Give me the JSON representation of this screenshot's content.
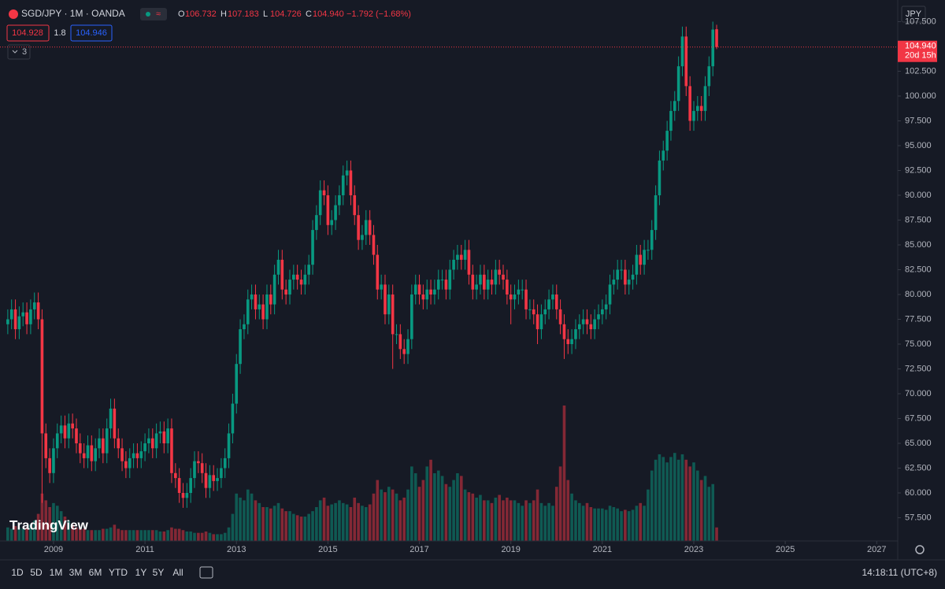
{
  "header": {
    "symbol": "SGD/JPY · 1M · OANDA",
    "ohlc": [
      {
        "letter": "O",
        "value": "106.732"
      },
      {
        "letter": "H",
        "value": "107.183"
      },
      {
        "letter": "L",
        "value": "104.726"
      },
      {
        "letter": "C",
        "value": "104.940"
      }
    ],
    "change": "−1.792 (−1.68%)",
    "sell": "104.928",
    "spread": "1.8",
    "buy": "104.946",
    "indicators": "3"
  },
  "chart_data": {
    "type": "candlestick",
    "currency": "JPY",
    "up_color": "#089981",
    "down_color": "#f23645",
    "x": [
      2008,
      2008.083,
      2008.167,
      2008.25,
      2008.333,
      2008.417,
      2008.5,
      2008.583,
      2008.667,
      2008.75,
      2008.833,
      2008.917,
      2009,
      2009.083,
      2009.167,
      2009.25,
      2009.333,
      2009.417,
      2009.5,
      2009.583,
      2009.667,
      2009.75,
      2009.833,
      2009.917,
      2010,
      2010.083,
      2010.167,
      2010.25,
      2010.333,
      2010.417,
      2010.5,
      2010.583,
      2010.667,
      2010.75,
      2010.833,
      2010.917,
      2011,
      2011.083,
      2011.167,
      2011.25,
      2011.333,
      2011.417,
      2011.5,
      2011.583,
      2011.667,
      2011.75,
      2011.833,
      2011.917,
      2012,
      2012.083,
      2012.167,
      2012.25,
      2012.333,
      2012.417,
      2012.5,
      2012.583,
      2012.667,
      2012.75,
      2012.833,
      2012.917,
      2013,
      2013.083,
      2013.167,
      2013.25,
      2013.333,
      2013.417,
      2013.5,
      2013.583,
      2013.667,
      2013.75,
      2013.833,
      2013.917,
      2014,
      2014.083,
      2014.167,
      2014.25,
      2014.333,
      2014.417,
      2014.5,
      2014.583,
      2014.667,
      2014.75,
      2014.833,
      2014.917,
      2015,
      2015.083,
      2015.167,
      2015.25,
      2015.333,
      2015.417,
      2015.5,
      2015.583,
      2015.667,
      2015.75,
      2015.833,
      2015.917,
      2016,
      2016.083,
      2016.167,
      2016.25,
      2016.333,
      2016.417,
      2016.5,
      2016.583,
      2016.667,
      2016.75,
      2016.833,
      2016.917,
      2017,
      2017.083,
      2017.167,
      2017.25,
      2017.333,
      2017.417,
      2017.5,
      2017.583,
      2017.667,
      2017.75,
      2017.833,
      2017.917,
      2018,
      2018.083,
      2018.167,
      2018.25,
      2018.333,
      2018.417,
      2018.5,
      2018.583,
      2018.667,
      2018.75,
      2018.833,
      2018.917,
      2019,
      2019.083,
      2019.167,
      2019.25,
      2019.333,
      2019.417,
      2019.5,
      2019.583,
      2019.667,
      2019.75,
      2019.833,
      2019.917,
      2020,
      2020.083,
      2020.167,
      2020.25,
      2020.333,
      2020.417,
      2020.5,
      2020.583,
      2020.667,
      2020.75,
      2020.833,
      2020.917,
      2021,
      2021.083,
      2021.167,
      2021.25,
      2021.333,
      2021.417,
      2021.5,
      2021.583,
      2021.667,
      2021.75,
      2021.833,
      2021.917,
      2022,
      2022.083,
      2022.167,
      2022.25,
      2022.333,
      2022.417,
      2022.5,
      2022.583,
      2022.667,
      2022.75,
      2022.833,
      2022.917,
      2023,
      2023.083,
      2023.167,
      2023.25,
      2023.333,
      2023.417,
      2023.5
    ],
    "open": [
      77.0,
      77.5,
      78.5,
      76.5,
      77.8,
      78.2,
      77.0,
      78.5,
      79.2,
      77.5,
      66.0,
      63.5,
      62.0,
      64.5,
      66.0,
      66.8,
      65.5,
      67.0,
      66.5,
      65.0,
      64.0,
      63.5,
      64.8,
      63.2,
      64.5,
      65.5,
      64.0,
      66.5,
      68.5,
      65.5,
      64.5,
      63.2,
      62.5,
      63.5,
      64.0,
      63.5,
      64.2,
      65.0,
      65.5,
      64.5,
      66.0,
      66.2,
      65.0,
      66.5,
      62.0,
      61.5,
      60.0,
      59.5,
      60.0,
      61.5,
      63.2,
      63.0,
      62.0,
      60.5,
      61.8,
      61.2,
      61.5,
      62.5,
      63.5,
      66.0,
      69.0,
      73.0,
      76.5,
      77.0,
      79.5,
      80.0,
      78.5,
      79.0,
      77.5,
      80.0,
      79.0,
      82.0,
      83.5,
      80.5,
      80.0,
      81.5,
      82.0,
      81.5,
      81.0,
      82.0,
      83.0,
      86.5,
      88.0,
      90.5,
      90.0,
      87.0,
      87.5,
      89.0,
      90.0,
      92.0,
      92.5,
      90.0,
      88.0,
      85.5,
      86.0,
      87.5,
      86.0,
      84.0,
      80.5,
      81.0,
      78.0,
      80.0,
      76.0,
      76.0,
      74.5,
      74.0,
      75.5,
      80.0,
      81.0,
      80.0,
      79.5,
      80.5,
      80.0,
      80.5,
      81.5,
      81.5,
      80.5,
      82.5,
      83.5,
      84.0,
      83.5,
      84.5,
      82.0,
      80.5,
      81.0,
      82.0,
      80.5,
      81.5,
      81.0,
      82.5,
      82.0,
      81.5,
      80.0,
      79.5,
      80.0,
      80.5,
      80.5,
      78.5,
      78.5,
      78.0,
      76.5,
      78.0,
      78.5,
      79.5,
      80.0,
      78.5,
      77.0,
      75.5,
      75.0,
      75.5,
      76.5,
      77.0,
      77.5,
      77.0,
      76.5,
      77.5,
      78.0,
      78.5,
      79.0,
      81.0,
      81.5,
      82.5,
      82.5,
      81.0,
      81.5,
      82.0,
      84.0,
      83.0,
      84.5,
      84.5,
      86.5,
      90.0,
      93.5,
      94.5,
      96.5,
      98.5,
      99.5,
      103.0,
      106.0,
      101.0,
      97.5,
      98.5,
      99.0,
      98.5,
      101.0,
      103.0,
      106.732
    ],
    "high": [
      78.5,
      79.5,
      79.5,
      78.8,
      79.2,
      79.2,
      79.5,
      80.2,
      80.2,
      78.5,
      67.0,
      64.5,
      65.5,
      67.0,
      67.8,
      67.8,
      68.0,
      68.0,
      67.5,
      66.0,
      65.0,
      65.8,
      65.8,
      65.5,
      66.5,
      66.5,
      67.5,
      69.5,
      69.5,
      66.5,
      65.5,
      64.2,
      64.5,
      65.0,
      65.0,
      65.2,
      66.0,
      66.5,
      66.5,
      67.0,
      67.2,
      67.2,
      67.5,
      67.5,
      63.0,
      62.5,
      61.0,
      61.0,
      62.5,
      64.2,
      64.2,
      64.0,
      63.0,
      62.8,
      62.8,
      62.5,
      63.5,
      64.5,
      67.0,
      70.0,
      74.0,
      77.5,
      78.0,
      80.5,
      81.0,
      81.0,
      80.0,
      80.0,
      81.0,
      81.0,
      83.0,
      84.5,
      84.5,
      81.5,
      82.5,
      83.0,
      83.0,
      82.5,
      83.0,
      84.0,
      87.5,
      89.0,
      91.5,
      91.5,
      91.0,
      88.5,
      90.0,
      91.0,
      93.0,
      93.5,
      93.5,
      91.0,
      89.0,
      87.0,
      88.5,
      88.5,
      87.0,
      85.0,
      82.0,
      82.0,
      81.0,
      81.0,
      77.0,
      77.0,
      75.5,
      76.5,
      81.0,
      82.0,
      82.0,
      81.0,
      81.5,
      81.5,
      81.5,
      82.5,
      82.5,
      82.5,
      83.5,
      84.5,
      85.0,
      85.0,
      85.5,
      85.5,
      83.0,
      82.0,
      83.0,
      83.0,
      82.5,
      82.5,
      83.5,
      83.5,
      83.0,
      82.5,
      81.0,
      81.0,
      81.5,
      81.5,
      81.5,
      79.5,
      79.5,
      79.0,
      79.0,
      79.5,
      80.5,
      81.0,
      81.0,
      79.5,
      78.0,
      76.5,
      76.5,
      77.5,
      78.0,
      78.5,
      78.5,
      78.0,
      78.5,
      79.0,
      79.5,
      80.0,
      82.0,
      82.5,
      83.5,
      83.5,
      83.5,
      82.5,
      83.0,
      85.0,
      85.0,
      85.5,
      85.5,
      87.5,
      91.0,
      94.5,
      95.5,
      97.5,
      99.5,
      100.5,
      104.0,
      107.0,
      107.0,
      102.0,
      99.5,
      100.0,
      100.0,
      102.0,
      104.0,
      107.5,
      107.183
    ],
    "low": [
      76.0,
      76.5,
      75.5,
      75.5,
      76.8,
      76.0,
      76.0,
      77.5,
      76.5,
      59.0,
      62.5,
      61.0,
      61.0,
      63.5,
      65.0,
      64.5,
      64.5,
      65.5,
      64.0,
      63.0,
      62.5,
      62.5,
      62.2,
      62.2,
      63.5,
      63.0,
      63.0,
      65.5,
      64.5,
      63.5,
      62.2,
      61.5,
      61.5,
      62.5,
      62.5,
      62.5,
      63.2,
      64.0,
      63.5,
      63.5,
      65.0,
      64.0,
      64.0,
      61.0,
      60.5,
      59.0,
      58.5,
      58.5,
      59.0,
      60.5,
      62.0,
      61.0,
      59.5,
      59.5,
      60.2,
      60.2,
      60.5,
      61.5,
      62.5,
      65.0,
      68.0,
      72.0,
      75.5,
      76.0,
      78.5,
      77.5,
      77.5,
      76.5,
      76.5,
      78.0,
      78.0,
      81.0,
      79.5,
      79.0,
      79.0,
      80.5,
      80.5,
      80.0,
      80.0,
      81.0,
      82.0,
      85.5,
      87.0,
      89.0,
      86.0,
      86.0,
      86.5,
      88.0,
      89.0,
      91.0,
      89.0,
      87.0,
      84.5,
      84.5,
      85.0,
      85.0,
      83.0,
      79.5,
      79.5,
      77.0,
      77.0,
      72.5,
      75.0,
      73.5,
      73.0,
      73.0,
      74.5,
      79.0,
      79.0,
      78.5,
      78.5,
      79.0,
      79.0,
      79.5,
      80.5,
      79.5,
      79.5,
      81.5,
      82.5,
      82.5,
      82.5,
      81.0,
      79.5,
      79.5,
      80.0,
      79.5,
      79.5,
      80.0,
      80.0,
      81.0,
      80.5,
      79.0,
      77.0,
      78.5,
      79.0,
      79.5,
      77.5,
      77.5,
      77.0,
      75.0,
      75.5,
      77.0,
      77.5,
      78.5,
      77.5,
      76.0,
      73.5,
      74.0,
      74.0,
      74.5,
      75.5,
      76.0,
      76.0,
      75.5,
      75.5,
      76.5,
      77.0,
      77.5,
      78.0,
      80.0,
      80.5,
      81.5,
      80.0,
      80.0,
      80.5,
      81.0,
      82.0,
      82.0,
      83.5,
      83.5,
      85.5,
      89.0,
      92.5,
      93.5,
      95.5,
      97.5,
      98.5,
      102.0,
      100.0,
      96.5,
      96.5,
      97.5,
      97.5,
      97.5,
      100.0,
      102.0,
      104.726
    ],
    "close": [
      77.5,
      78.5,
      76.5,
      77.8,
      78.2,
      77.0,
      78.5,
      79.2,
      77.5,
      66.0,
      63.5,
      62.0,
      64.5,
      66.0,
      66.8,
      65.5,
      67.0,
      66.5,
      65.0,
      64.0,
      63.5,
      64.8,
      63.2,
      64.5,
      65.5,
      64.0,
      66.5,
      68.5,
      65.5,
      64.5,
      63.2,
      62.5,
      63.5,
      64.0,
      63.5,
      64.2,
      65.0,
      65.5,
      64.5,
      66.0,
      66.2,
      65.0,
      66.5,
      62.0,
      61.5,
      60.0,
      59.5,
      60.0,
      61.5,
      63.2,
      63.0,
      62.0,
      60.5,
      61.8,
      61.2,
      61.5,
      62.5,
      63.5,
      66.0,
      69.0,
      73.0,
      76.5,
      77.0,
      79.5,
      80.0,
      78.5,
      79.0,
      77.5,
      80.0,
      79.0,
      82.0,
      83.5,
      80.5,
      80.0,
      81.5,
      82.0,
      81.5,
      81.0,
      82.0,
      83.0,
      86.5,
      88.0,
      90.5,
      90.0,
      87.0,
      87.5,
      89.0,
      90.0,
      92.0,
      92.5,
      90.0,
      88.0,
      85.5,
      86.0,
      87.5,
      86.0,
      84.0,
      80.5,
      81.0,
      78.0,
      80.0,
      76.0,
      76.0,
      74.5,
      74.0,
      75.5,
      80.0,
      81.0,
      80.0,
      79.5,
      80.5,
      80.0,
      80.5,
      81.5,
      81.5,
      80.5,
      82.5,
      83.5,
      84.0,
      83.5,
      84.5,
      82.0,
      80.5,
      81.0,
      82.0,
      80.5,
      81.5,
      81.0,
      82.5,
      82.0,
      81.5,
      80.0,
      79.5,
      80.0,
      80.5,
      80.5,
      78.5,
      78.5,
      78.0,
      76.5,
      78.0,
      78.5,
      79.5,
      80.0,
      78.5,
      77.0,
      75.5,
      75.0,
      75.5,
      76.5,
      77.0,
      77.5,
      77.0,
      76.5,
      77.5,
      78.0,
      78.5,
      79.0,
      81.0,
      81.5,
      82.5,
      82.5,
      81.0,
      81.5,
      82.0,
      84.0,
      83.0,
      84.5,
      84.5,
      86.5,
      90.0,
      93.5,
      94.5,
      96.5,
      98.5,
      99.5,
      103.0,
      106.0,
      101.0,
      97.5,
      98.5,
      99.0,
      98.5,
      101.0,
      103.0,
      106.7,
      104.94
    ],
    "volume": [
      10,
      9,
      11,
      10,
      9,
      10,
      12,
      15,
      20,
      35,
      30,
      25,
      28,
      26,
      22,
      18,
      15,
      12,
      10,
      9,
      9,
      8,
      8,
      8,
      8,
      9,
      9,
      10,
      12,
      9,
      8,
      8,
      8,
      8,
      8,
      8,
      8,
      8,
      8,
      8,
      7,
      7,
      8,
      10,
      9,
      9,
      8,
      7,
      7,
      6,
      6,
      6,
      7,
      6,
      5,
      5,
      5,
      6,
      10,
      20,
      35,
      32,
      30,
      38,
      35,
      30,
      28,
      25,
      25,
      24,
      26,
      28,
      24,
      22,
      22,
      20,
      19,
      18,
      18,
      20,
      22,
      25,
      30,
      32,
      26,
      27,
      28,
      30,
      28,
      27,
      25,
      32,
      28,
      26,
      25,
      27,
      35,
      45,
      38,
      36,
      40,
      38,
      35,
      30,
      32,
      38,
      55,
      50,
      40,
      45,
      55,
      60,
      50,
      52,
      48,
      42,
      40,
      45,
      50,
      48,
      38,
      36,
      35,
      32,
      34,
      30,
      30,
      28,
      32,
      34,
      30,
      32,
      30,
      30,
      28,
      26,
      30,
      28,
      30,
      38,
      28,
      26,
      28,
      26,
      40,
      55,
      100,
      45,
      35,
      30,
      28,
      26,
      28,
      25,
      24,
      24,
      24,
      23,
      26,
      25,
      24,
      22,
      23,
      22,
      23,
      26,
      28,
      26,
      38,
      52,
      60,
      64,
      62,
      58,
      62,
      65,
      60,
      64,
      60,
      55,
      58,
      52,
      45,
      48,
      40,
      42,
      10
    ],
    "xlim": [
      2007.83,
      2027.46
    ],
    "xticks": [
      2009,
      2011,
      2013,
      2015,
      2017,
      2019,
      2021,
      2023,
      2025,
      2027
    ],
    "ylim": [
      55.16,
      109.68
    ],
    "yticks": [
      {
        "value": 57.5,
        "label": "57.500"
      },
      {
        "value": 60,
        "label": "60.000"
      },
      {
        "value": 62.5,
        "label": "62.500"
      },
      {
        "value": 65,
        "label": "65.000"
      },
      {
        "value": 67.5,
        "label": "67.500"
      },
      {
        "value": 70,
        "label": "70.000"
      },
      {
        "value": 72.5,
        "label": "72.500"
      },
      {
        "value": 75,
        "label": "75.000"
      },
      {
        "value": 77.5,
        "label": "77.500"
      },
      {
        "value": 80,
        "label": "80.000"
      },
      {
        "value": 82.5,
        "label": "82.500"
      },
      {
        "value": 85,
        "label": "85.000"
      },
      {
        "value": 87.5,
        "label": "87.500"
      },
      {
        "value": 90,
        "label": "90.000"
      },
      {
        "value": 92.5,
        "label": "92.500"
      },
      {
        "value": 95,
        "label": "95.000"
      },
      {
        "value": 97.5,
        "label": "97.500"
      },
      {
        "value": 100,
        "label": "100.000"
      },
      {
        "value": 102.5,
        "label": "102.500"
      },
      {
        "value": 107.5,
        "label": "107.500"
      }
    ],
    "last_price": {
      "value": 104.94,
      "label": "104.940"
    },
    "countdown": "20d 15h"
  },
  "branding": "TradingView",
  "toolbar": {
    "ranges": [
      "1D",
      "5D",
      "1M",
      "3M",
      "6M",
      "YTD",
      "1Y",
      "5Y",
      "All"
    ],
    "clock": "14:18:11 (UTC+8)"
  }
}
